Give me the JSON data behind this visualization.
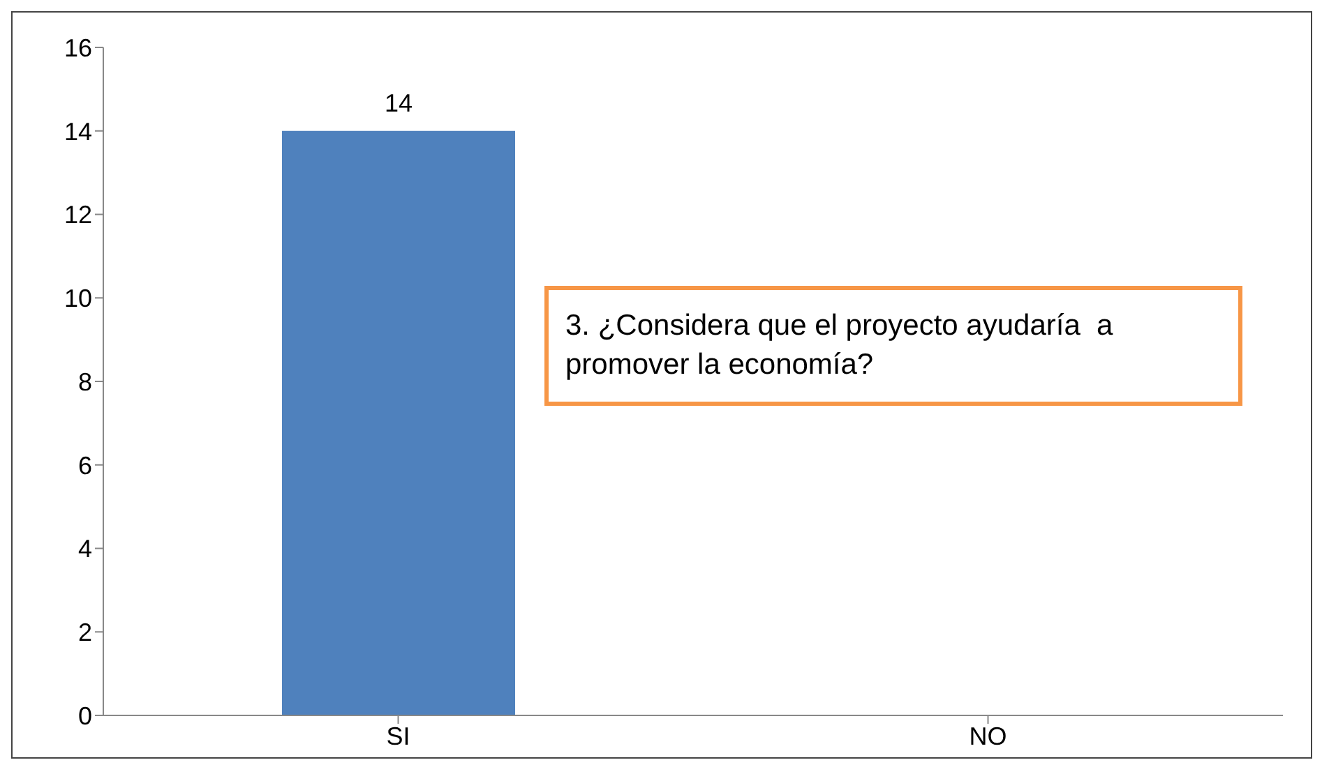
{
  "chart_data": {
    "type": "bar",
    "categories": [
      "SI",
      "NO"
    ],
    "values": [
      14,
      0
    ],
    "color": "#4f81bd",
    "ylim": [
      0,
      16
    ],
    "yticks": [
      0,
      2,
      4,
      6,
      8,
      10,
      12,
      14,
      16
    ],
    "value_labels": [
      "14",
      null
    ],
    "annotations": [
      "3. ¿Considera que el proyecto ayudaría  a promover la economía?"
    ]
  }
}
